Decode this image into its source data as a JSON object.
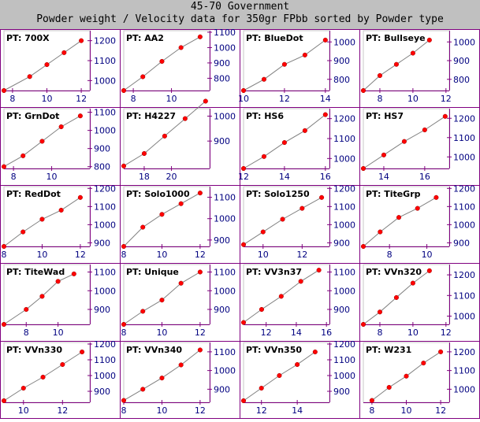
{
  "header": {
    "title": "45-70 Government",
    "subtitle": "Powder weight / Velocity data for 350gr FPbb sorted by Powder type"
  },
  "colors": {
    "header_bg": "#c0c0c0",
    "frame": "#800080",
    "plot_border": "#808080",
    "line": "#808080",
    "marker": "#ff0000",
    "axis_text": "#000080"
  },
  "chart_data": [
    {
      "type": "line",
      "title": "PT: 700X",
      "x": [
        7.5,
        9,
        10,
        11,
        12
      ],
      "y": [
        950,
        1020,
        1080,
        1140,
        1200
      ],
      "xticks": [
        8,
        10,
        12
      ],
      "yticks": [
        1000,
        1100,
        1200
      ],
      "xlim": [
        7.5,
        12.5
      ],
      "ylim": [
        950,
        1250
      ],
      "series": [
        {
          "values": [
            950,
            1020,
            1080,
            1140,
            1200
          ]
        }
      ]
    },
    {
      "type": "line",
      "title": "PT: AA2",
      "x": [
        7.5,
        8.5,
        9.5,
        10.5,
        11.5
      ],
      "y": [
        720,
        810,
        910,
        1000,
        1070
      ],
      "xticks": [
        8,
        10
      ],
      "yticks": [
        800,
        900,
        1000,
        1100
      ],
      "xlim": [
        7.5,
        12
      ],
      "ylim": [
        720,
        1110
      ],
      "series": [
        {
          "values": [
            720,
            810,
            910,
            1000,
            1070
          ]
        }
      ]
    },
    {
      "type": "line",
      "title": "PT: BlueDot",
      "x": [
        10,
        11,
        12,
        13,
        14
      ],
      "y": [
        740,
        800,
        880,
        930,
        1010
      ],
      "xticks": [
        10,
        12,
        14
      ],
      "yticks": [
        800,
        900,
        1000
      ],
      "xlim": [
        10,
        14.2
      ],
      "ylim": [
        740,
        1060
      ],
      "series": [
        {
          "values": [
            740,
            800,
            880,
            930,
            1010
          ]
        }
      ]
    },
    {
      "type": "line",
      "title": "PT: Bullseye",
      "x": [
        7,
        8,
        9,
        10,
        11
      ],
      "y": [
        740,
        820,
        880,
        940,
        1010
      ],
      "xticks": [
        8,
        10,
        12
      ],
      "yticks": [
        800,
        900,
        1000
      ],
      "xlim": [
        7,
        12.2
      ],
      "ylim": [
        740,
        1060
      ],
      "series": [
        {
          "values": [
            740,
            820,
            880,
            940,
            1010
          ]
        }
      ]
    },
    {
      "type": "line",
      "title": "PT: GrnDot",
      "x": [
        7.5,
        8.5,
        9.5,
        10.5,
        11.5
      ],
      "y": [
        800,
        860,
        940,
        1020,
        1080
      ],
      "xticks": [
        8,
        10
      ],
      "yticks": [
        800,
        900,
        1000,
        1100
      ],
      "xlim": [
        7.5,
        12
      ],
      "ylim": [
        790,
        1120
      ],
      "series": [
        {
          "values": [
            800,
            860,
            940,
            1020,
            1080
          ]
        }
      ]
    },
    {
      "type": "line",
      "title": "PT: H4227",
      "x": [
        16.5,
        18,
        19.5,
        21,
        22.5
      ],
      "y": [
        800,
        850,
        920,
        990,
        1060
      ],
      "xticks": [
        18,
        20
      ],
      "yticks": [
        900,
        1000
      ],
      "xlim": [
        16.5,
        22.8
      ],
      "ylim": [
        790,
        1030
      ],
      "series": [
        {
          "values": [
            800,
            850,
            920,
            990,
            1060
          ]
        }
      ]
    },
    {
      "type": "line",
      "title": "PT: HS6",
      "x": [
        12,
        13,
        14,
        15,
        16
      ],
      "y": [
        950,
        1010,
        1080,
        1140,
        1220
      ],
      "xticks": [
        12,
        14,
        16
      ],
      "yticks": [
        1000,
        1100,
        1200
      ],
      "xlim": [
        12,
        16.2
      ],
      "ylim": [
        950,
        1250
      ],
      "series": [
        {
          "values": [
            950,
            1010,
            1080,
            1140,
            1220
          ]
        }
      ]
    },
    {
      "type": "line",
      "title": "PT: HS7",
      "x": [
        13,
        14,
        15,
        16,
        17
      ],
      "y": [
        940,
        1010,
        1080,
        1140,
        1210
      ],
      "xticks": [
        14,
        16
      ],
      "yticks": [
        1000,
        1100,
        1200
      ],
      "xlim": [
        13,
        17.2
      ],
      "ylim": [
        940,
        1250
      ],
      "series": [
        {
          "values": [
            940,
            1010,
            1080,
            1140,
            1210
          ]
        }
      ]
    },
    {
      "type": "line",
      "title": "PT: RedDot",
      "x": [
        8,
        9,
        10,
        11,
        12
      ],
      "y": [
        880,
        960,
        1030,
        1080,
        1150
      ],
      "xticks": [
        8,
        10,
        12
      ],
      "yticks": [
        900,
        1000,
        1100,
        1200
      ],
      "xlim": [
        8,
        12.5
      ],
      "ylim": [
        880,
        1210
      ],
      "series": [
        {
          "values": [
            880,
            960,
            1030,
            1080,
            1150
          ]
        }
      ]
    },
    {
      "type": "line",
      "title": "PT: Solo1000",
      "x": [
        8,
        9,
        10,
        11,
        12
      ],
      "y": [
        870,
        960,
        1020,
        1070,
        1120
      ],
      "xticks": [
        8,
        10,
        12
      ],
      "yticks": [
        900,
        1000,
        1100
      ],
      "xlim": [
        8,
        12.5
      ],
      "ylim": [
        870,
        1150
      ],
      "series": [
        {
          "values": [
            870,
            960,
            1020,
            1070,
            1120
          ]
        }
      ]
    },
    {
      "type": "line",
      "title": "PT: Solo1250",
      "x": [
        9,
        10,
        11,
        12,
        13
      ],
      "y": [
        890,
        960,
        1030,
        1090,
        1150
      ],
      "xticks": [
        10,
        12
      ],
      "yticks": [
        900,
        1000,
        1100,
        1200
      ],
      "xlim": [
        9,
        13.4
      ],
      "ylim": [
        880,
        1210
      ],
      "series": [
        {
          "values": [
            890,
            960,
            1030,
            1090,
            1150
          ]
        }
      ]
    },
    {
      "type": "line",
      "title": "PT: TiteGrp",
      "x": [
        6.6,
        7.5,
        8.5,
        9.5,
        10.5
      ],
      "y": [
        880,
        960,
        1040,
        1090,
        1150
      ],
      "xticks": [
        8,
        10
      ],
      "yticks": [
        900,
        1000,
        1100,
        1200
      ],
      "xlim": [
        6.6,
        11.2
      ],
      "ylim": [
        880,
        1210
      ],
      "series": [
        {
          "values": [
            880,
            960,
            1040,
            1090,
            1150
          ]
        }
      ]
    },
    {
      "type": "line",
      "title": "PT: TiteWad",
      "x": [
        6.6,
        8,
        9,
        10,
        11
      ],
      "y": [
        820,
        900,
        970,
        1050,
        1090
      ],
      "xticks": [
        8,
        10
      ],
      "yticks": [
        900,
        1000,
        1100
      ],
      "xlim": [
        6.6,
        12
      ],
      "ylim": [
        820,
        1140
      ],
      "series": [
        {
          "values": [
            820,
            900,
            970,
            1050,
            1090
          ]
        }
      ]
    },
    {
      "type": "line",
      "title": "PT: Unique",
      "x": [
        8,
        9,
        10,
        11,
        12
      ],
      "y": [
        820,
        890,
        950,
        1040,
        1100
      ],
      "xticks": [
        8,
        10,
        12
      ],
      "yticks": [
        900,
        1000,
        1100
      ],
      "xlim": [
        8,
        12.5
      ],
      "ylim": [
        820,
        1140
      ],
      "series": [
        {
          "values": [
            820,
            890,
            950,
            1040,
            1100
          ]
        }
      ]
    },
    {
      "type": "line",
      "title": "PT: VV3n37",
      "x": [
        10.5,
        11.7,
        13,
        14.3,
        15.5
      ],
      "y": [
        830,
        900,
        970,
        1050,
        1110
      ],
      "xticks": [
        12,
        14,
        16
      ],
      "yticks": [
        900,
        1000,
        1100
      ],
      "xlim": [
        10.5,
        16.2
      ],
      "ylim": [
        820,
        1140
      ],
      "series": [
        {
          "values": [
            830,
            900,
            970,
            1050,
            1110
          ]
        }
      ]
    },
    {
      "type": "line",
      "title": "PT: VVn320",
      "x": [
        7,
        8,
        9,
        10,
        11
      ],
      "y": [
        960,
        1020,
        1090,
        1160,
        1220
      ],
      "xticks": [
        8,
        10,
        12
      ],
      "yticks": [
        1000,
        1100,
        1200
      ],
      "xlim": [
        7,
        12.2
      ],
      "ylim": [
        960,
        1250
      ],
      "series": [
        {
          "values": [
            960,
            1020,
            1090,
            1160,
            1220
          ]
        }
      ]
    },
    {
      "type": "line",
      "title": "PT: VVn330",
      "x": [
        9,
        10,
        11,
        12,
        13
      ],
      "y": [
        840,
        920,
        990,
        1070,
        1150
      ],
      "xticks": [
        10,
        12
      ],
      "yticks": [
        900,
        1000,
        1100,
        1200
      ],
      "xlim": [
        9,
        13.4
      ],
      "ylim": [
        830,
        1210
      ],
      "series": [
        {
          "values": [
            840,
            920,
            990,
            1070,
            1150
          ]
        }
      ]
    },
    {
      "type": "line",
      "title": "PT: VVn340",
      "x": [
        8,
        9,
        10,
        11,
        12
      ],
      "y": [
        840,
        900,
        960,
        1030,
        1110
      ],
      "xticks": [
        8,
        10,
        12
      ],
      "yticks": [
        900,
        1000,
        1100
      ],
      "xlim": [
        8,
        12.5
      ],
      "ylim": [
        830,
        1150
      ],
      "series": [
        {
          "values": [
            840,
            900,
            960,
            1030,
            1110
          ]
        }
      ]
    },
    {
      "type": "line",
      "title": "PT: VVn350",
      "x": [
        11,
        12,
        13,
        14,
        15
      ],
      "y": [
        840,
        920,
        1000,
        1070,
        1150
      ],
      "xticks": [
        12,
        14
      ],
      "yticks": [
        900,
        1000,
        1100,
        1200
      ],
      "xlim": [
        11,
        15.8
      ],
      "ylim": [
        830,
        1210
      ],
      "series": [
        {
          "values": [
            840,
            920,
            1000,
            1070,
            1150
          ]
        }
      ]
    },
    {
      "type": "line",
      "title": "PT: W231",
      "x": [
        8,
        9,
        10,
        11,
        12
      ],
      "y": [
        940,
        1010,
        1070,
        1140,
        1200
      ],
      "xticks": [
        8,
        10,
        12
      ],
      "yticks": [
        1000,
        1100,
        1200
      ],
      "xlim": [
        7.5,
        12.5
      ],
      "ylim": [
        930,
        1250
      ],
      "series": [
        {
          "values": [
            940,
            1010,
            1070,
            1140,
            1200
          ]
        }
      ]
    }
  ]
}
